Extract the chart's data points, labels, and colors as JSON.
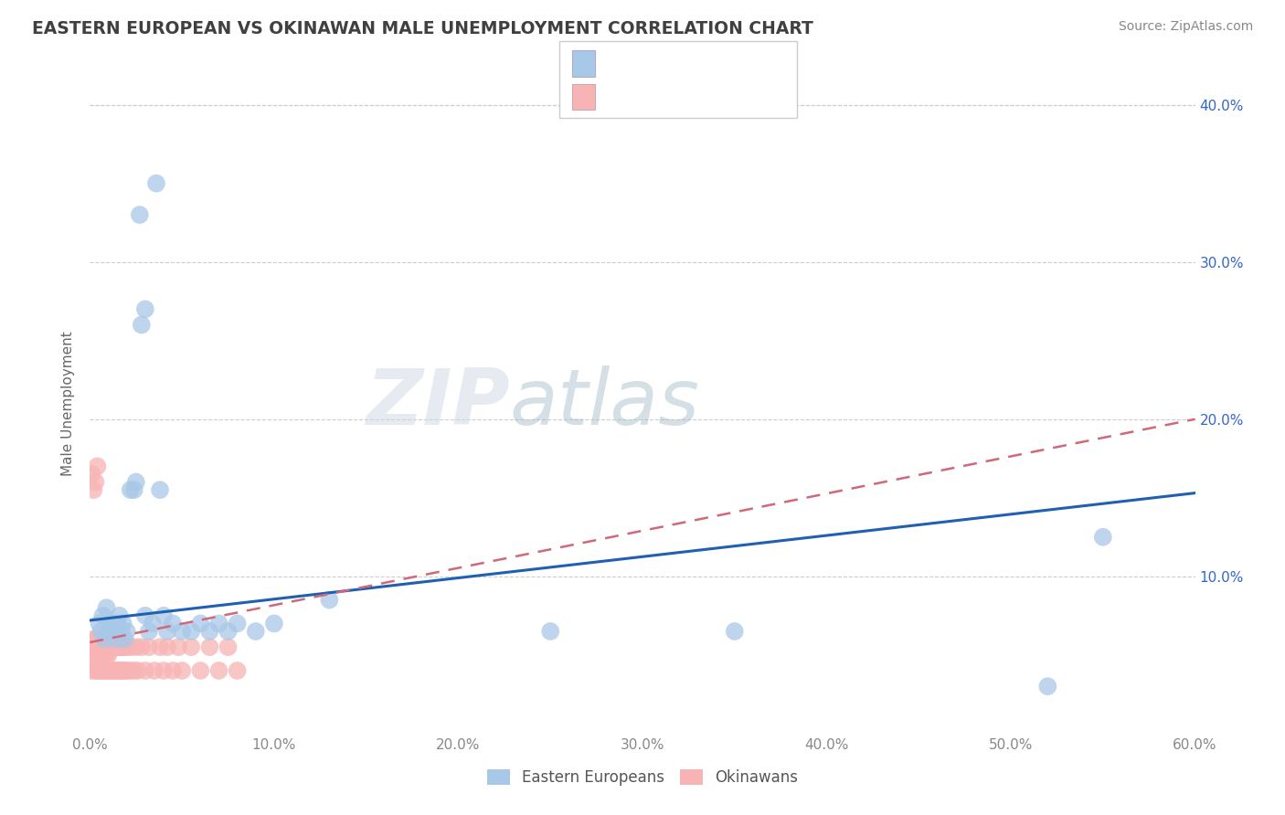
{
  "title": "EASTERN EUROPEAN VS OKINAWAN MALE UNEMPLOYMENT CORRELATION CHART",
  "source_text": "Source: ZipAtlas.com",
  "ylabel": "Male Unemployment",
  "xlim": [
    0.0,
    0.6
  ],
  "ylim": [
    0.0,
    0.42
  ],
  "xtick_vals": [
    0.0,
    0.1,
    0.2,
    0.3,
    0.4,
    0.5,
    0.6
  ],
  "xticklabels": [
    "0.0%",
    "10.0%",
    "20.0%",
    "30.0%",
    "40.0%",
    "50.0%",
    "60.0%"
  ],
  "ytick_right_vals": [
    0.1,
    0.2,
    0.3,
    0.4
  ],
  "yticklabels_right": [
    "10.0%",
    "20.0%",
    "30.0%",
    "40.0%"
  ],
  "blue_scatter_color": "#a8c8e8",
  "pink_scatter_color": "#f8b4b4",
  "blue_line_color": "#2060b0",
  "pink_line_color": "#d06878",
  "legend_blue_box": "#a8c8e8",
  "legend_pink_box": "#f8b4b4",
  "legend_text_color": "#3366cc",
  "watermark_zip_color": "#d0dce8",
  "watermark_atlas_color": "#b8ccd8",
  "background_color": "#ffffff",
  "grid_color": "#cccccc",
  "title_color": "#404040",
  "axis_color": "#888888",
  "ee_x": [
    0.005,
    0.006,
    0.007,
    0.008,
    0.009,
    0.01,
    0.011,
    0.012,
    0.013,
    0.014,
    0.015,
    0.016,
    0.017,
    0.018,
    0.019,
    0.02,
    0.022,
    0.024,
    0.025,
    0.027,
    0.028,
    0.03,
    0.032,
    0.034,
    0.036,
    0.038,
    0.04,
    0.042,
    0.045,
    0.05,
    0.055,
    0.06,
    0.065,
    0.07,
    0.075,
    0.08,
    0.09,
    0.1,
    0.13,
    0.25,
    0.35,
    0.52,
    0.55,
    0.03
  ],
  "ee_y": [
    0.07,
    0.065,
    0.075,
    0.06,
    0.08,
    0.065,
    0.07,
    0.065,
    0.07,
    0.06,
    0.07,
    0.075,
    0.065,
    0.07,
    0.06,
    0.065,
    0.155,
    0.155,
    0.16,
    0.33,
    0.26,
    0.075,
    0.065,
    0.07,
    0.35,
    0.155,
    0.075,
    0.065,
    0.07,
    0.065,
    0.065,
    0.07,
    0.065,
    0.07,
    0.065,
    0.07,
    0.065,
    0.07,
    0.085,
    0.065,
    0.065,
    0.03,
    0.125,
    0.27
  ],
  "ok_x": [
    0.001,
    0.002,
    0.002,
    0.003,
    0.003,
    0.003,
    0.004,
    0.004,
    0.004,
    0.005,
    0.005,
    0.005,
    0.005,
    0.006,
    0.006,
    0.006,
    0.007,
    0.007,
    0.007,
    0.007,
    0.008,
    0.008,
    0.008,
    0.009,
    0.009,
    0.009,
    0.01,
    0.01,
    0.01,
    0.011,
    0.011,
    0.012,
    0.012,
    0.013,
    0.013,
    0.014,
    0.014,
    0.015,
    0.015,
    0.016,
    0.016,
    0.017,
    0.017,
    0.018,
    0.018,
    0.019,
    0.019,
    0.02,
    0.02,
    0.022,
    0.022,
    0.024,
    0.025,
    0.026,
    0.028,
    0.03,
    0.032,
    0.035,
    0.038,
    0.04,
    0.042,
    0.045,
    0.048,
    0.05,
    0.055,
    0.06,
    0.065,
    0.07,
    0.075,
    0.08,
    0.001,
    0.002,
    0.003,
    0.004
  ],
  "ok_y": [
    0.04,
    0.05,
    0.06,
    0.04,
    0.05,
    0.06,
    0.04,
    0.05,
    0.06,
    0.04,
    0.05,
    0.055,
    0.06,
    0.04,
    0.05,
    0.06,
    0.04,
    0.05,
    0.055,
    0.06,
    0.04,
    0.05,
    0.055,
    0.04,
    0.05,
    0.06,
    0.04,
    0.05,
    0.055,
    0.04,
    0.055,
    0.04,
    0.055,
    0.04,
    0.055,
    0.04,
    0.055,
    0.04,
    0.055,
    0.04,
    0.055,
    0.04,
    0.055,
    0.04,
    0.055,
    0.04,
    0.055,
    0.04,
    0.055,
    0.04,
    0.055,
    0.04,
    0.055,
    0.04,
    0.055,
    0.04,
    0.055,
    0.04,
    0.055,
    0.04,
    0.055,
    0.04,
    0.055,
    0.04,
    0.055,
    0.04,
    0.055,
    0.04,
    0.055,
    0.04,
    0.165,
    0.155,
    0.16,
    0.17
  ],
  "ee_line_x0": 0.0,
  "ee_line_x1": 0.6,
  "ee_line_y0": 0.072,
  "ee_line_y1": 0.153,
  "ok_line_x0": 0.0,
  "ok_line_x1": 0.6,
  "ok_line_y0": 0.058,
  "ok_line_y1": 0.2
}
